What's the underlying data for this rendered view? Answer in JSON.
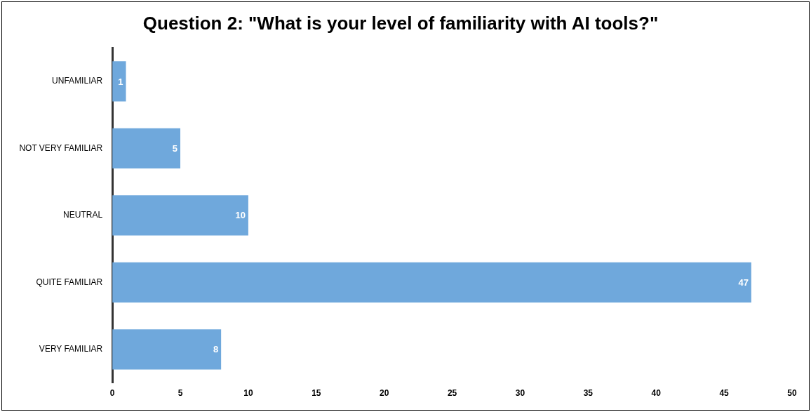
{
  "chart_data": {
    "type": "bar",
    "orientation": "horizontal",
    "title": "Question 2: \"What is your level of familiarity with AI tools?\"",
    "categories": [
      "UNFAMILIAR",
      "NOT VERY FAMILIAR",
      "NEUTRAL",
      "QUITE FAMILIAR",
      "VERY FAMILIAR"
    ],
    "values": [
      1,
      5,
      10,
      47,
      8
    ],
    "color": "#6fa8dc",
    "xlim": [
      0,
      50
    ],
    "xticks": [
      0,
      5,
      10,
      15,
      20,
      25,
      30,
      35,
      40,
      45,
      50
    ],
    "grid": false,
    "legend": false,
    "data_labels": true
  }
}
